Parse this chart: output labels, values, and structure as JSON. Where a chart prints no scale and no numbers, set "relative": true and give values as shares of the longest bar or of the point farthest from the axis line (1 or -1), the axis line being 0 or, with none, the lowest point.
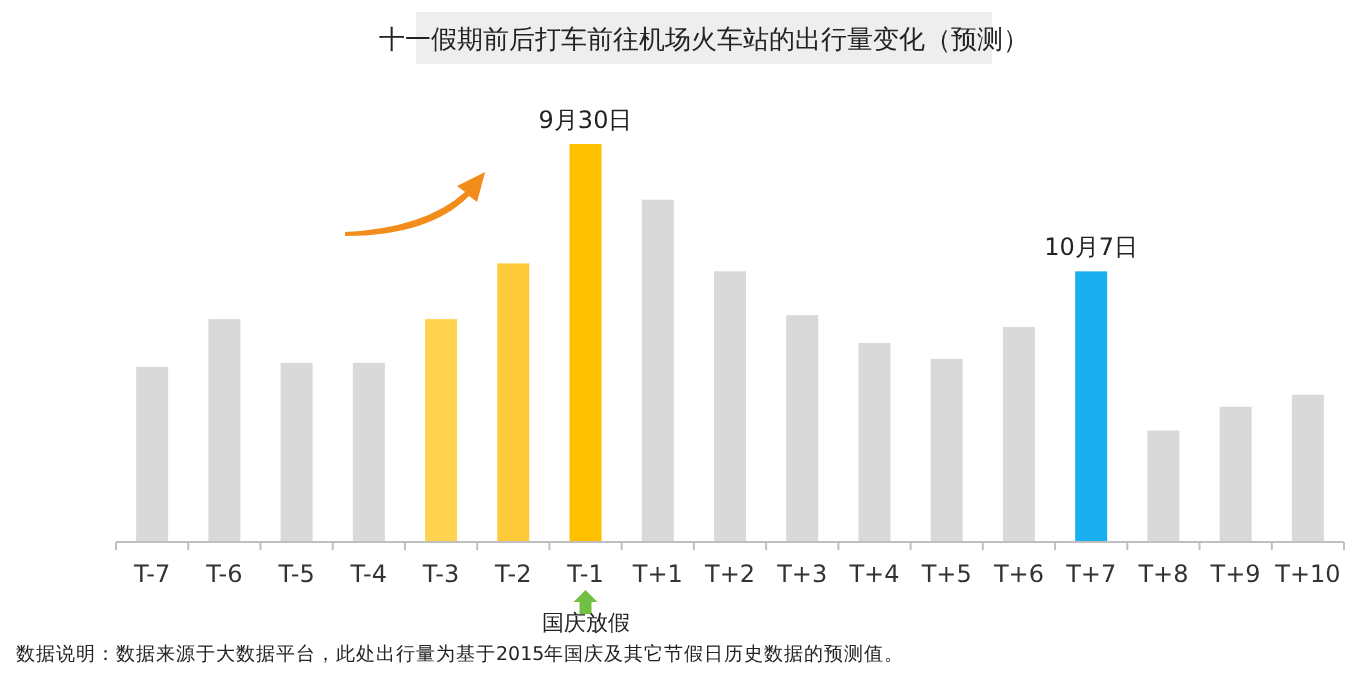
{
  "chart_data": {
    "type": "bar",
    "title": "十一假期前后打车前往机场火车站的出行量变化（预测）",
    "categories": [
      "T-7",
      "T-6",
      "T-5",
      "T-4",
      "T-3",
      "T-2",
      "T-1",
      "T+1",
      "T+2",
      "T+3",
      "T+4",
      "T+5",
      "T+6",
      "T+7",
      "T+8",
      "T+9",
      "T+10"
    ],
    "values": [
      0.44,
      0.56,
      0.45,
      0.45,
      0.56,
      0.7,
      1,
      0.86,
      0.68,
      0.57,
      0.5,
      0.46,
      0.54,
      0.68,
      0.28,
      0.34,
      0.37
    ],
    "colors": [
      "#d9d9d9",
      "#d9d9d9",
      "#d9d9d9",
      "#d9d9d9",
      "#ffd34f",
      "#ffca3a",
      "#ffc000",
      "#d9d9d9",
      "#d9d9d9",
      "#d9d9d9",
      "#d9d9d9",
      "#d9d9d9",
      "#d9d9d9",
      "#1aaff0",
      "#d9d9d9",
      "#d9d9d9",
      "#d9d9d9"
    ],
    "relative": true,
    "annotations": [
      {
        "text": "9月30日",
        "x": "T-1",
        "y": 1
      },
      {
        "text": "10月7日",
        "x": "T+7",
        "y": 0.68
      },
      "国庆放假",
      "数据说明：数据来源于大数据平台，此处出行量为基于2015年国庆及其它节假日历史数据的预测值。"
    ]
  }
}
